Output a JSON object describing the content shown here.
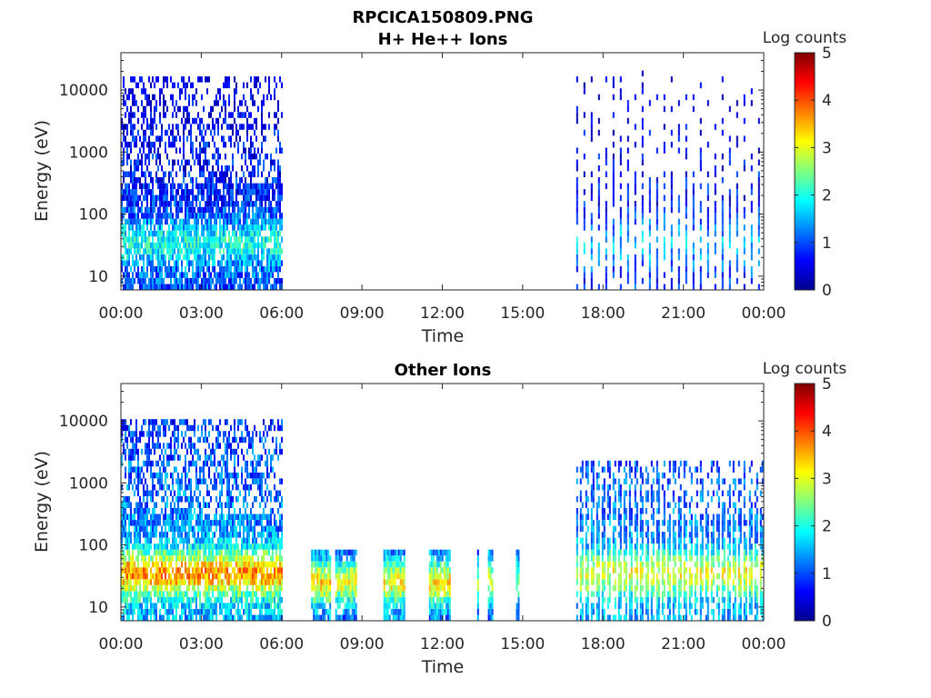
{
  "figure_title": "RPCICA150809.PNG",
  "chart_data": [
    {
      "type": "heatmap",
      "title": "H+ He++ Ions",
      "xlabel": "Time",
      "ylabel": "Energy (eV)",
      "x_tick_labels": [
        "00:00",
        "03:00",
        "06:00",
        "09:00",
        "12:00",
        "15:00",
        "18:00",
        "21:00",
        "00:00"
      ],
      "xlim_hours": [
        0,
        24
      ],
      "y_scale": "log",
      "ylim": [
        6,
        40000
      ],
      "y_ticks": [
        10,
        100,
        1000,
        10000
      ],
      "y_tick_labels": [
        "10",
        "100",
        "1000",
        "10000"
      ],
      "colorbar": {
        "label": "Log counts",
        "range": [
          0,
          5
        ],
        "ticks": [
          "0",
          "1",
          "2",
          "3",
          "4",
          "5"
        ],
        "colormap": "jet"
      },
      "data_segments": [
        {
          "start_hour": 0.0,
          "end_hour": 6.0,
          "pattern": "dense",
          "emax": 18000,
          "peak_energy": 35,
          "peak_level": 2.0,
          "base_level": 1.0
        },
        {
          "start_hour": 17.0,
          "end_hour": 24.0,
          "pattern": "sparse-stripes",
          "emax": 20000,
          "peak_energy": 35,
          "peak_level": 1.6,
          "base_level": 0.8
        }
      ]
    },
    {
      "type": "heatmap",
      "title": "Other Ions",
      "xlabel": "Time",
      "ylabel": "Energy (eV)",
      "x_tick_labels": [
        "00:00",
        "03:00",
        "06:00",
        "09:00",
        "12:00",
        "15:00",
        "18:00",
        "21:00",
        "00:00"
      ],
      "xlim_hours": [
        0,
        24
      ],
      "y_scale": "log",
      "ylim": [
        6,
        40000
      ],
      "y_ticks": [
        10,
        100,
        1000,
        10000
      ],
      "y_tick_labels": [
        "10",
        "100",
        "1000",
        "10000"
      ],
      "colorbar": {
        "label": "Log counts",
        "range": [
          0,
          5
        ],
        "ticks": [
          "0",
          "1",
          "2",
          "3",
          "4",
          "5"
        ],
        "colormap": "jet"
      },
      "data_segments": [
        {
          "start_hour": 0.0,
          "end_hour": 6.0,
          "pattern": "dense",
          "emax": 10000,
          "peak_energy": 35,
          "peak_level": 3.6,
          "base_level": 1.5
        },
        {
          "start_hour": 7.1,
          "end_hour": 7.8,
          "pattern": "block",
          "emax": 80,
          "peak_energy": 25,
          "peak_level": 3.2,
          "base_level": 1.2
        },
        {
          "start_hour": 8.0,
          "end_hour": 8.8,
          "pattern": "block",
          "emax": 80,
          "peak_energy": 25,
          "peak_level": 3.0,
          "base_level": 1.0
        },
        {
          "start_hour": 9.8,
          "end_hour": 10.6,
          "pattern": "block",
          "emax": 80,
          "peak_energy": 25,
          "peak_level": 3.1,
          "base_level": 1.2
        },
        {
          "start_hour": 11.5,
          "end_hour": 12.3,
          "pattern": "block",
          "emax": 80,
          "peak_energy": 25,
          "peak_level": 3.2,
          "base_level": 1.2
        },
        {
          "start_hour": 13.3,
          "end_hour": 13.35,
          "pattern": "block",
          "emax": 80,
          "peak_energy": 25,
          "peak_level": 2.4,
          "base_level": 1.0
        },
        {
          "start_hour": 13.7,
          "end_hour": 13.9,
          "pattern": "block",
          "emax": 80,
          "peak_energy": 25,
          "peak_level": 2.8,
          "base_level": 1.2
        },
        {
          "start_hour": 14.75,
          "end_hour": 14.85,
          "pattern": "block",
          "emax": 80,
          "peak_energy": 25,
          "peak_level": 2.6,
          "base_level": 1.0
        },
        {
          "start_hour": 17.0,
          "end_hour": 24.0,
          "pattern": "striped",
          "emax": 2500,
          "peak_energy": 35,
          "peak_level": 3.0,
          "base_level": 1.4
        }
      ]
    }
  ]
}
